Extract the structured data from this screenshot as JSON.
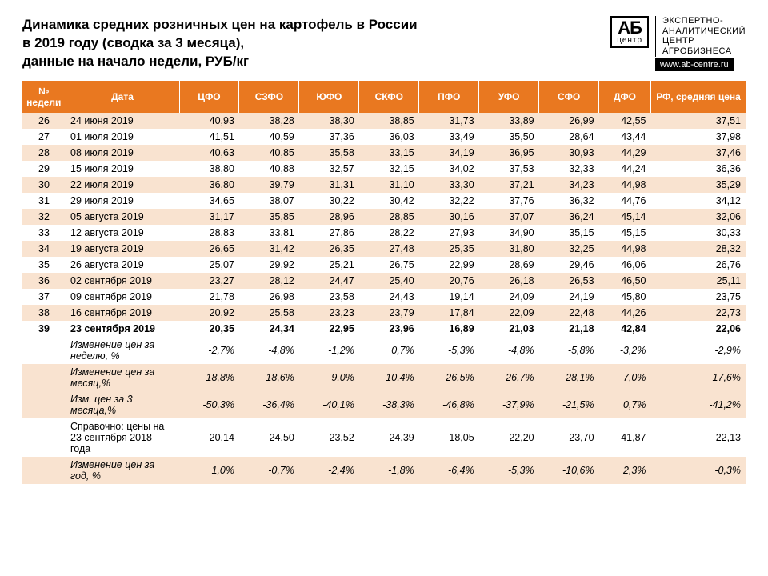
{
  "title_lines": [
    "Динамика средних розничных цен на картофель в России",
    "в 2019 году (сводка за 3 месяца),",
    "данные на начало недели, РУБ/кг"
  ],
  "logo": {
    "ab": "АБ",
    "center": "центр",
    "text": "ЭКСПЕРТНО-\nАНАЛИТИЧЕСКИЙ\nЦЕНТР\nАГРОБИЗНЕСА",
    "url": "www.ab-centre.ru"
  },
  "columns": [
    "№ недели",
    "Дата",
    "ЦФО",
    "СЗФО",
    "ЮФО",
    "СКФО",
    "ПФО",
    "УФО",
    "СФО",
    "ДФО",
    "РФ, средняя цена"
  ],
  "rows": [
    {
      "w": "26",
      "d": "24 июня 2019",
      "v": [
        "40,93",
        "38,28",
        "38,30",
        "38,85",
        "31,73",
        "33,89",
        "26,99",
        "42,55",
        "37,51"
      ]
    },
    {
      "w": "27",
      "d": "01 июля 2019",
      "v": [
        "41,51",
        "40,59",
        "37,36",
        "36,03",
        "33,49",
        "35,50",
        "28,64",
        "43,44",
        "37,98"
      ]
    },
    {
      "w": "28",
      "d": "08 июля 2019",
      "v": [
        "40,63",
        "40,85",
        "35,58",
        "33,15",
        "34,19",
        "36,95",
        "30,93",
        "44,29",
        "37,46"
      ]
    },
    {
      "w": "29",
      "d": "15 июля 2019",
      "v": [
        "38,80",
        "40,88",
        "32,57",
        "32,15",
        "34,02",
        "37,53",
        "32,33",
        "44,24",
        "36,36"
      ]
    },
    {
      "w": "30",
      "d": "22 июля 2019",
      "v": [
        "36,80",
        "39,79",
        "31,31",
        "31,10",
        "33,30",
        "37,21",
        "34,23",
        "44,98",
        "35,29"
      ]
    },
    {
      "w": "31",
      "d": "29 июля 2019",
      "v": [
        "34,65",
        "38,07",
        "30,22",
        "30,42",
        "32,22",
        "37,76",
        "36,32",
        "44,76",
        "34,12"
      ]
    },
    {
      "w": "32",
      "d": "05 августа 2019",
      "v": [
        "31,17",
        "35,85",
        "28,96",
        "28,85",
        "30,16",
        "37,07",
        "36,24",
        "45,14",
        "32,06"
      ]
    },
    {
      "w": "33",
      "d": "12 августа 2019",
      "v": [
        "28,83",
        "33,81",
        "27,86",
        "28,22",
        "27,93",
        "34,90",
        "35,15",
        "45,15",
        "30,33"
      ]
    },
    {
      "w": "34",
      "d": "19 августа 2019",
      "v": [
        "26,65",
        "31,42",
        "26,35",
        "27,48",
        "25,35",
        "31,80",
        "32,25",
        "44,98",
        "28,32"
      ]
    },
    {
      "w": "35",
      "d": "26 августа 2019",
      "v": [
        "25,07",
        "29,92",
        "25,21",
        "26,75",
        "22,99",
        "28,69",
        "29,46",
        "46,06",
        "26,76"
      ]
    },
    {
      "w": "36",
      "d": "02 сентября 2019",
      "v": [
        "23,27",
        "28,12",
        "24,47",
        "25,40",
        "20,76",
        "26,18",
        "26,53",
        "46,50",
        "25,11"
      ]
    },
    {
      "w": "37",
      "d": "09 сентября 2019",
      "v": [
        "21,78",
        "26,98",
        "23,58",
        "24,43",
        "19,14",
        "24,09",
        "24,19",
        "45,80",
        "23,75"
      ]
    },
    {
      "w": "38",
      "d": "16 сентября 2019",
      "v": [
        "20,92",
        "25,58",
        "23,23",
        "23,79",
        "17,84",
        "22,09",
        "22,48",
        "44,26",
        "22,73"
      ]
    },
    {
      "w": "39",
      "d": "23 сентября 2019",
      "v": [
        "20,35",
        "24,34",
        "22,95",
        "23,96",
        "16,89",
        "21,03",
        "21,18",
        "42,84",
        "22,06"
      ],
      "bold": true
    }
  ],
  "summary": [
    {
      "d": "Изменение цен за неделю, %",
      "v": [
        "-2,7%",
        "-4,8%",
        "-1,2%",
        "0,7%",
        "-5,3%",
        "-4,8%",
        "-5,8%",
        "-3,2%",
        "-2,9%"
      ],
      "italic": true,
      "bg": "even"
    },
    {
      "d": "Изменение цен за месяц,%",
      "v": [
        "-18,8%",
        "-18,6%",
        "-9,0%",
        "-10,4%",
        "-26,5%",
        "-26,7%",
        "-28,1%",
        "-7,0%",
        "-17,6%"
      ],
      "italic": true,
      "bg": "odd"
    },
    {
      "d": "Изм. цен за 3 месяца,%",
      "v": [
        "-50,3%",
        "-36,4%",
        "-40,1%",
        "-38,3%",
        "-46,8%",
        "-37,9%",
        "-21,5%",
        "0,7%",
        "-41,2%"
      ],
      "italic": true,
      "bg": "odd"
    },
    {
      "d": "Справочно: цены на 23 сентября 2018 года",
      "v": [
        "20,14",
        "24,50",
        "23,52",
        "24,39",
        "18,05",
        "22,20",
        "23,70",
        "41,87",
        "22,13"
      ],
      "bg": "even"
    },
    {
      "d": "Изменение цен за год, %",
      "v": [
        "1,0%",
        "-0,7%",
        "-2,4%",
        "-1,8%",
        "-6,4%",
        "-5,3%",
        "-10,6%",
        "2,3%",
        "-0,3%"
      ],
      "italic": true,
      "bg": "odd"
    }
  ],
  "colors": {
    "header_bg": "#e97820",
    "header_fg": "#ffffff",
    "row_odd": "#f9e3d0",
    "row_even": "#ffffff"
  }
}
